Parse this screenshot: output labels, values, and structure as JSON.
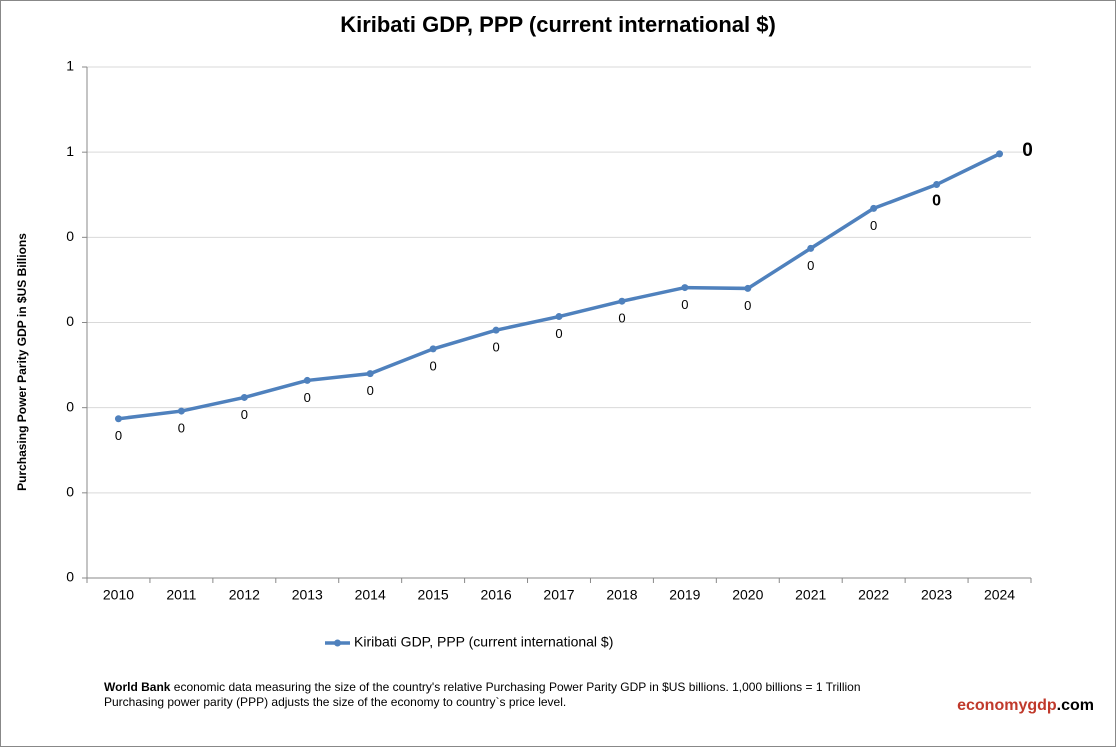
{
  "chart_data": {
    "type": "line",
    "title": "Kiribati GDP, PPP (current international $)",
    "y_label": "Purchasing Power Parity GDP in $US Billions",
    "categories": [
      "2010",
      "2011",
      "2012",
      "2013",
      "2014",
      "2015",
      "2016",
      "2017",
      "2018",
      "2019",
      "2020",
      "2021",
      "2022",
      "2023",
      "2024"
    ],
    "series": [
      {
        "name": "Kiribati GDP, PPP (current international $)",
        "color": "#4f81bd",
        "values": [
          0.187,
          0.196,
          0.212,
          0.232,
          0.24,
          0.269,
          0.291,
          0.307,
          0.325,
          0.341,
          0.34,
          0.387,
          0.434,
          0.462,
          0.498
        ],
        "value_labels": [
          "0",
          "0",
          "0",
          "0",
          "0",
          "0",
          "0",
          "0",
          "0",
          "0",
          "0",
          "0",
          "0",
          "0",
          "0"
        ]
      }
    ],
    "ylim": [
      0,
      0.6
    ],
    "yticks": [
      {
        "value": 0,
        "label": "0"
      },
      {
        "value": 0.1,
        "label": "0"
      },
      {
        "value": 0.2,
        "label": "0"
      },
      {
        "value": 0.3,
        "label": "0"
      },
      {
        "value": 0.4,
        "label": "0"
      },
      {
        "value": 0.5,
        "label": "1"
      },
      {
        "value": 0.6,
        "label": "1"
      }
    ],
    "grid": true,
    "legend": "bottom"
  },
  "footer": {
    "source": "World Bank",
    "line1": " economic data  measuring the size of the country's relative  Purchasing Power Parity GDP in $US billions. 1,000 billions = 1 Trillion",
    "line2": "Purchasing power parity (PPP) adjusts the size of the economy to country`s price level.",
    "brand": "economygdp",
    "brand_suffix": ".com"
  }
}
